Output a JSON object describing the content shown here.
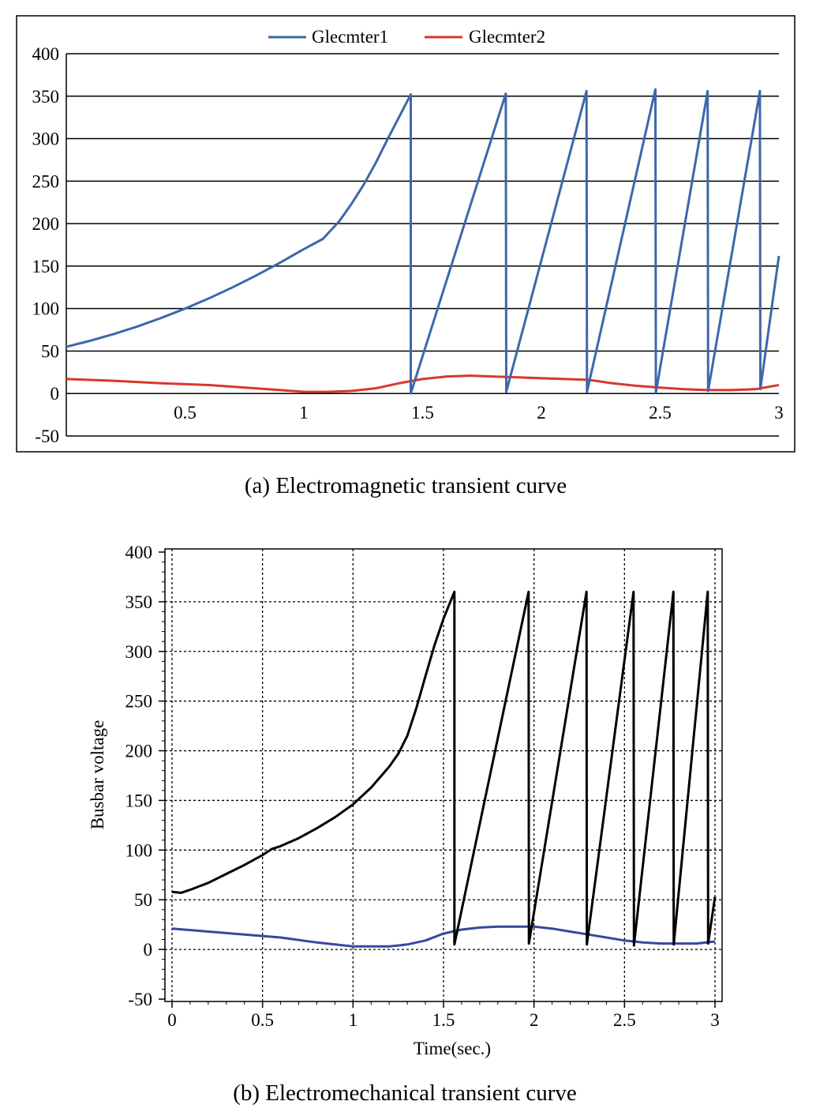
{
  "chart_data": [
    {
      "id": "a",
      "type": "line",
      "caption": "(a) Electromagnetic transient curve",
      "xlabel": "",
      "ylabel": "",
      "xlim": [
        0,
        3
      ],
      "ylim": [
        -50,
        400
      ],
      "x_ticks": [
        0.5,
        1,
        1.5,
        2,
        2.5,
        3
      ],
      "y_ticks": [
        400,
        350,
        300,
        250,
        200,
        150,
        100,
        50,
        0,
        -50
      ],
      "grid": "horizontal",
      "legend_position": "top",
      "series": [
        {
          "name": "Glecmter1",
          "color": "#3d67ab",
          "x": [
            0,
            0.1,
            0.2,
            0.3,
            0.4,
            0.5,
            0.6,
            0.7,
            0.8,
            0.9,
            1.0,
            1.08,
            1.15,
            1.2,
            1.25,
            1.3,
            1.35,
            1.4,
            1.45,
            1.45,
            1.85,
            1.852,
            2.19,
            2.192,
            2.48,
            2.482,
            2.7,
            2.702,
            2.92,
            2.922,
            3.0
          ],
          "y": [
            55,
            62,
            70,
            79,
            89,
            100,
            112,
            125,
            139,
            154,
            170,
            182,
            203,
            223,
            245,
            270,
            298,
            325,
            352,
            0,
            353,
            2,
            356,
            2,
            358,
            1,
            356,
            3,
            356,
            5,
            162
          ]
        },
        {
          "name": "Glecmter2",
          "color": "#d8382c",
          "x": [
            0,
            0.2,
            0.4,
            0.6,
            0.8,
            0.9,
            1.0,
            1.1,
            1.2,
            1.3,
            1.4,
            1.5,
            1.6,
            1.7,
            1.8,
            1.9,
            2.0,
            2.1,
            2.2,
            2.3,
            2.4,
            2.5,
            2.6,
            2.7,
            2.8,
            2.9,
            3.0
          ],
          "y": [
            17,
            15,
            12,
            10,
            6,
            4,
            2,
            2,
            3,
            6,
            12,
            17,
            20,
            21,
            20,
            19,
            18,
            17,
            16,
            12,
            9,
            7,
            5,
            4,
            4,
            5,
            10
          ]
        }
      ]
    },
    {
      "id": "b",
      "type": "line",
      "caption": "(b) Electromechanical transient curve",
      "xlabel": "Time(sec.)",
      "ylabel": "Busbar voltage",
      "xlim": [
        0,
        3
      ],
      "ylim": [
        -50,
        400
      ],
      "x_ticks": [
        0,
        0.5,
        1,
        1.5,
        2,
        2.5,
        3
      ],
      "y_ticks": [
        400,
        350,
        300,
        250,
        200,
        150,
        100,
        50,
        0,
        -50
      ],
      "grid": "dotted",
      "series": [
        {
          "color": "#000000",
          "x": [
            0,
            0.05,
            0.1,
            0.2,
            0.3,
            0.4,
            0.5,
            0.55,
            0.6,
            0.7,
            0.8,
            0.9,
            1.0,
            1.1,
            1.2,
            1.25,
            1.3,
            1.35,
            1.4,
            1.45,
            1.5,
            1.56,
            1.56,
            1.97,
            1.972,
            2.29,
            2.292,
            2.55,
            2.552,
            2.77,
            2.772,
            2.96,
            2.962,
            3.0
          ],
          "y": [
            58,
            57,
            60,
            67,
            76,
            85,
            95,
            101,
            104,
            112,
            122,
            133,
            146,
            163,
            184,
            197,
            215,
            243,
            275,
            306,
            333,
            360,
            5,
            360,
            6,
            360,
            5,
            360,
            4,
            360,
            5,
            360,
            6,
            53
          ]
        },
        {
          "color": "#39479c",
          "x": [
            0,
            0.2,
            0.4,
            0.6,
            0.8,
            0.9,
            1.0,
            1.1,
            1.2,
            1.3,
            1.4,
            1.5,
            1.6,
            1.7,
            1.8,
            1.9,
            2.0,
            2.1,
            2.2,
            2.3,
            2.4,
            2.5,
            2.6,
            2.7,
            2.8,
            2.9,
            3.0
          ],
          "y": [
            21,
            18,
            15,
            12,
            7,
            5,
            3,
            3,
            3,
            5,
            9,
            16,
            20,
            22,
            23,
            23,
            23,
            21,
            18,
            15,
            12,
            9,
            7,
            6,
            6,
            6,
            8
          ]
        }
      ]
    }
  ]
}
